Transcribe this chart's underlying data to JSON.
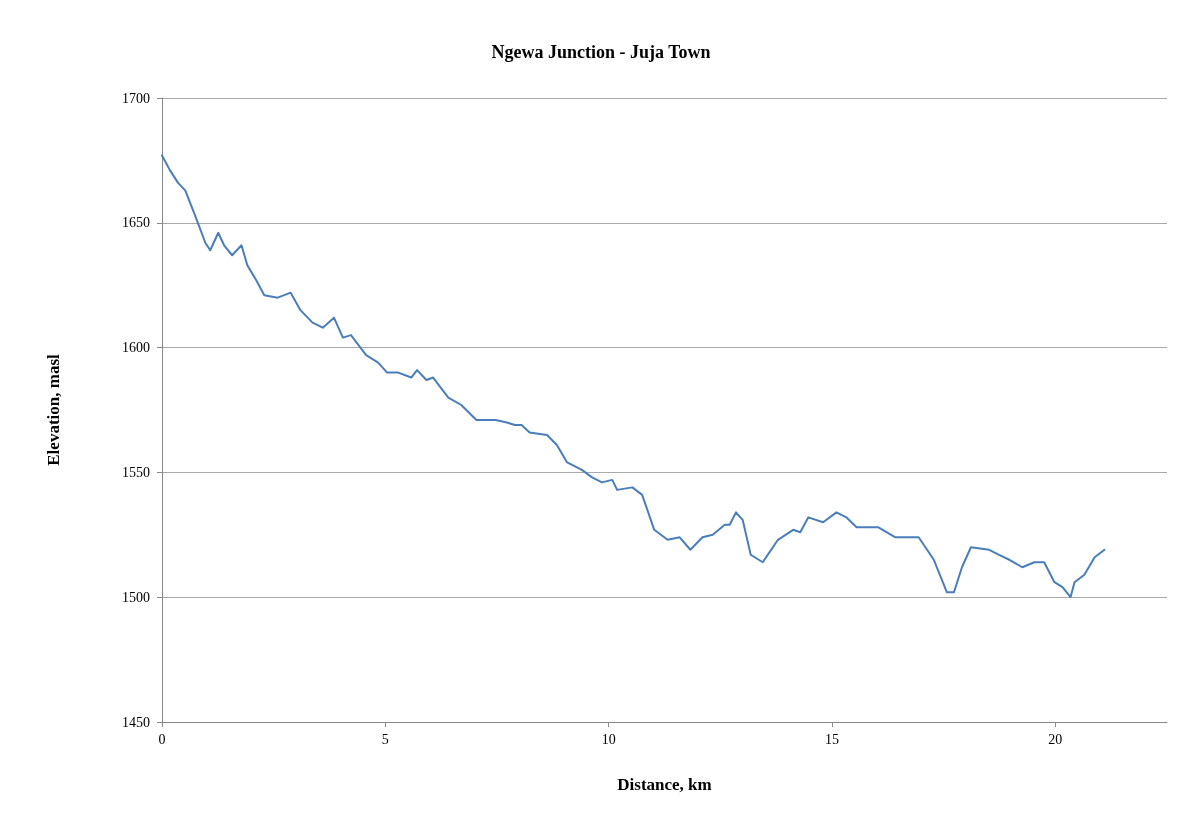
{
  "chart_data": {
    "type": "line",
    "title": "Ngewa Junction - Juja Town",
    "xlabel": "Distance, km",
    "ylabel": "Elevation, masl",
    "x": [
      0,
      0.18,
      0.36,
      0.52,
      0.74,
      0.97,
      1.08,
      1.26,
      1.39,
      1.57,
      1.78,
      1.91,
      2.11,
      2.29,
      2.59,
      2.88,
      3.1,
      3.37,
      3.6,
      3.85,
      4.05,
      4.23,
      4.57,
      4.84,
      5.04,
      5.29,
      5.58,
      5.71,
      5.92,
      6.07,
      6.41,
      6.7,
      7.04,
      7.47,
      7.72,
      7.9,
      8.05,
      8.23,
      8.62,
      8.84,
      9.07,
      9.4,
      9.63,
      9.85,
      10.08,
      10.19,
      10.53,
      10.75,
      11.02,
      11.32,
      11.59,
      11.83,
      12.1,
      12.33,
      12.6,
      12.71,
      12.85,
      13,
      13.18,
      13.45,
      13.79,
      14.13,
      14.29,
      14.47,
      14.8,
      15.1,
      15.32,
      15.55,
      16.04,
      16.42,
      16.94,
      17.28,
      17.57,
      17.73,
      17.91,
      18.11,
      18.52,
      18.74,
      18.97,
      19.26,
      19.53,
      19.75,
      19.98,
      20.16,
      20.34,
      20.43,
      20.65,
      20.88,
      21.1
    ],
    "series": [
      {
        "color": "#4a7ebb",
        "values": [
          1677,
          1671,
          1666,
          1663,
          1653,
          1642,
          1639,
          1646,
          1641,
          1637,
          1641,
          1633,
          1627,
          1621,
          1620,
          1622,
          1615,
          1610,
          1608,
          1612,
          1604,
          1605,
          1597,
          1594,
          1590,
          1590,
          1588,
          1591,
          1587,
          1588,
          1580,
          1577,
          1571,
          1571,
          1570,
          1569,
          1569,
          1566,
          1565,
          1561,
          1554,
          1551,
          1548,
          1546,
          1547,
          1543,
          1544,
          1541,
          1527,
          1523,
          1524,
          1519,
          1524,
          1525,
          1529,
          1529,
          1534,
          1531,
          1517,
          1514,
          1523,
          1527,
          1526,
          1532,
          1530,
          1534,
          1532,
          1528,
          1528,
          1524,
          1524,
          1515,
          1502,
          1502,
          1512,
          1520,
          1519,
          1517,
          1515,
          1512,
          1514,
          1514,
          1506,
          1504,
          1500,
          1506,
          1509,
          1516,
          1519
        ]
      }
    ],
    "xlim": [
      0,
      22.5
    ],
    "xticks": [
      0,
      5,
      10,
      15,
      20
    ],
    "ylim": [
      1450,
      1700
    ],
    "yticks": [
      1450,
      1500,
      1550,
      1600,
      1650,
      1700
    ],
    "grid": "y",
    "marker": "none",
    "line_style": "solid"
  }
}
